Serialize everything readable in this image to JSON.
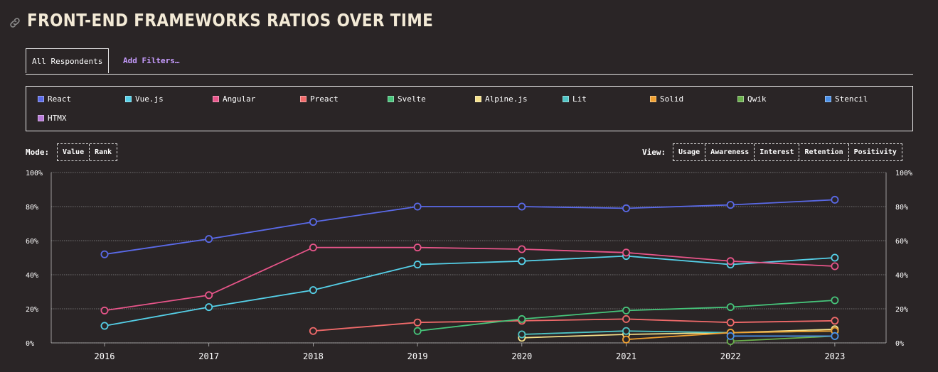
{
  "title": "FRONT-END FRAMEWORKS RATIOS OVER TIME",
  "filters": {
    "tab_label": "All Respondents",
    "add_filters_label": "Add Filters…"
  },
  "mode": {
    "label": "Mode:",
    "options": [
      "Value",
      "Rank"
    ]
  },
  "view": {
    "label": "View:",
    "options": [
      "Usage",
      "Awareness",
      "Interest",
      "Retention",
      "Positivity"
    ]
  },
  "colors": {
    "background": "#2a2526",
    "accent": "#c79cff",
    "grid": "#8a8a8a"
  },
  "chart_data": {
    "type": "line",
    "title": "",
    "xlabel": "",
    "ylabel": "",
    "x": [
      "2016",
      "2017",
      "2018",
      "2019",
      "2020",
      "2021",
      "2022",
      "2023"
    ],
    "ylim": [
      0,
      100
    ],
    "y_ticks": [
      "0%",
      "20%",
      "40%",
      "60%",
      "80%",
      "100%"
    ],
    "grid": true,
    "legend_position": "top",
    "series": [
      {
        "name": "React",
        "color": "#5a6ae8",
        "values": [
          52,
          61,
          71,
          80,
          80,
          79,
          81,
          84
        ]
      },
      {
        "name": "Vue.js",
        "color": "#55d0e8",
        "values": [
          10,
          21,
          31,
          46,
          48,
          51,
          46,
          50
        ]
      },
      {
        "name": "Angular",
        "color": "#e8558a",
        "values": [
          19,
          28,
          56,
          56,
          55,
          53,
          48,
          45
        ]
      },
      {
        "name": "Preact",
        "color": "#f06a6a",
        "values": [
          null,
          null,
          7,
          12,
          13,
          14,
          12,
          13
        ]
      },
      {
        "name": "Svelte",
        "color": "#46c47a",
        "values": [
          null,
          null,
          null,
          7,
          14,
          19,
          21,
          25
        ]
      },
      {
        "name": "Alpine.js",
        "color": "#f5e08a",
        "values": [
          null,
          null,
          null,
          null,
          3,
          5,
          6,
          8
        ]
      },
      {
        "name": "Lit",
        "color": "#4ec4c4",
        "values": [
          null,
          null,
          null,
          null,
          5,
          7,
          6,
          7
        ]
      },
      {
        "name": "Solid",
        "color": "#f0a030",
        "values": [
          null,
          null,
          null,
          null,
          null,
          2,
          6,
          7
        ]
      },
      {
        "name": "Qwik",
        "color": "#6ab04c",
        "values": [
          null,
          null,
          null,
          null,
          null,
          null,
          1,
          4
        ]
      },
      {
        "name": "Stencil",
        "color": "#4a90e8",
        "values": [
          null,
          null,
          null,
          null,
          null,
          null,
          4,
          4
        ]
      },
      {
        "name": "HTMX",
        "color": "#b87ad8",
        "values": [
          null,
          null,
          null,
          null,
          null,
          null,
          null,
          null
        ]
      }
    ]
  }
}
